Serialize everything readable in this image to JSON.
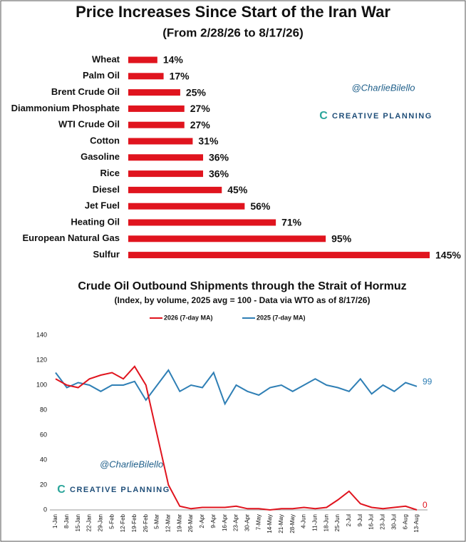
{
  "chart_data": [
    {
      "type": "hbar",
      "title": "Price Increases Since Start of the Iran War",
      "subtitle": "(From 2/28/26 to 8/17/26)",
      "categories": [
        "Wheat",
        "Palm Oil",
        "Brent Crude Oil",
        "Diammonium Phosphate",
        "WTI Crude Oil",
        "Cotton",
        "Gasoline",
        "Rice",
        "Diesel",
        "Jet Fuel",
        "Heating Oil",
        "European Natural Gas",
        "Sulfur"
      ],
      "values": [
        14,
        17,
        25,
        27,
        27,
        31,
        36,
        36,
        45,
        56,
        71,
        95,
        145
      ],
      "value_labels": [
        "14%",
        "17%",
        "25%",
        "27%",
        "27%",
        "31%",
        "36%",
        "36%",
        "45%",
        "56%",
        "71%",
        "95%",
        "145%"
      ],
      "color": "#e0141e",
      "annotations": [
        "@CharlieBilello",
        "CREATIVE PLANNING"
      ]
    },
    {
      "type": "line",
      "title": "Crude Oil Outbound Shipments through the Strait of Hormuz",
      "subtitle": "(Index, by volume, 2025 avg = 100 - Data via WTO as of 8/17/26)",
      "categories": [
        "1-Jan",
        "8-Jan",
        "15-Jan",
        "22-Jan",
        "29-Jan",
        "5-Feb",
        "12-Feb",
        "19-Feb",
        "26-Feb",
        "5-Mar",
        "12-Mar",
        "19-Mar",
        "26-Mar",
        "2-Apr",
        "9-Apr",
        "16-Apr",
        "23-Apr",
        "30-Apr",
        "7-May",
        "14-May",
        "21-May",
        "28-May",
        "4-Jun",
        "11-Jun",
        "18-Jun",
        "25-Jun",
        "2-Jul",
        "9-Jul",
        "16-Jul",
        "23-Jul",
        "30-Jul",
        "6-Aug",
        "13-Aug"
      ],
      "series": [
        {
          "name": "2026 (7-day MA)",
          "color": "#e0141e",
          "values": [
            105,
            100,
            98,
            105,
            108,
            110,
            105,
            115,
            100,
            60,
            20,
            3,
            1,
            2,
            2,
            2,
            3,
            1,
            1,
            0,
            1,
            1,
            2,
            1,
            2,
            8,
            15,
            5,
            2,
            1,
            2,
            3,
            0
          ]
        },
        {
          "name": "2025 (7-day MA)",
          "color": "#2f7fb5",
          "values": [
            110,
            98,
            102,
            100,
            95,
            100,
            100,
            103,
            88,
            100,
            112,
            95,
            100,
            98,
            110,
            85,
            100,
            95,
            92,
            98,
            100,
            95,
            100,
            105,
            100,
            98,
            95,
            105,
            93,
            100,
            95,
            102,
            99
          ]
        }
      ],
      "ylim": [
        0,
        140
      ],
      "yticks": [
        0,
        20,
        40,
        60,
        80,
        100,
        120,
        140
      ],
      "legend": "top",
      "annotations": [
        "@CharlieBilello",
        "CREATIVE PLANNING"
      ]
    }
  ]
}
